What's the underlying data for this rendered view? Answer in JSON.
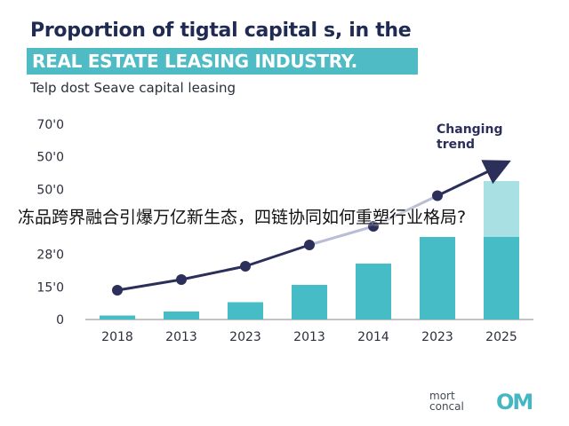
{
  "header": {
    "title_line1": "Proportion of tigtal capital s, in the",
    "title_line2": "REAL ESTATE LEASING INDUSTRY.",
    "subtitle": "Telp dost Seave capital leasing"
  },
  "overlay_caption": "冻品跨界融合引爆万亿新生态，四链协同如何重塑行业格局?",
  "brand": {
    "text_line1": "mort",
    "text_line2": "concal",
    "logo": "OM"
  },
  "colors": {
    "bar": "#45bcc6",
    "bar_light": "#a8e0e4",
    "line_dark": "#2b2f5a",
    "line_light": "#b9bdd6",
    "title_band": "#4fbcc5"
  },
  "chart_data": {
    "type": "bar",
    "categories": [
      "2018",
      "2013",
      "2023",
      "2013",
      "2014",
      "2023",
      "2025"
    ],
    "y_tick_labels": [
      "0",
      "15'0",
      "28'0",
      "",
      "50'0",
      "50'0",
      "70'0"
    ],
    "bar_values": [
      3,
      6,
      13,
      26,
      42,
      62,
      62
    ],
    "bar_extra_values": [
      0,
      0,
      0,
      0,
      0,
      0,
      42
    ],
    "line_values": [
      22,
      30,
      40,
      56,
      70,
      93,
      116
    ],
    "ylim": [
      0,
      140
    ],
    "grid": false,
    "annotation": "Changing trend",
    "annotation_line1": "Changing",
    "annotation_line2": "trend"
  }
}
